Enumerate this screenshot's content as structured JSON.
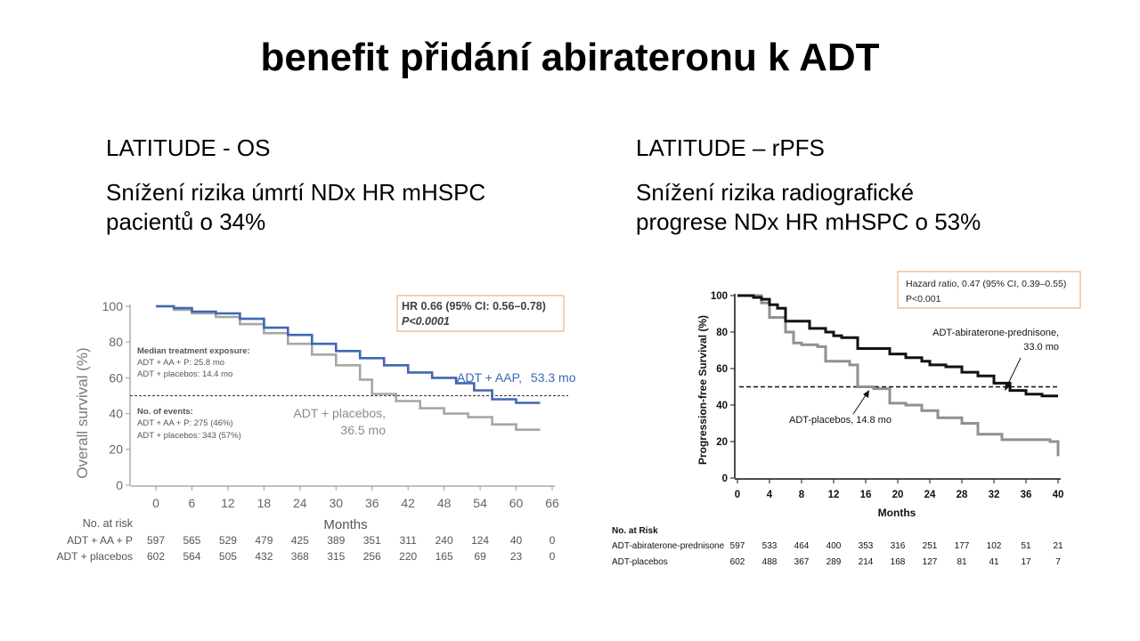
{
  "slide": {
    "title": "benefit přidání abirateronu k ADT",
    "left_heading": "LATITUDE - OS",
    "left_text_line1": "Snížení rizika úmrtí NDx HR mHSPC",
    "left_text_line2": "pacientů o 34%",
    "right_heading": "LATITUDE – rPFS",
    "right_text_line1": "Snížení rizika radiografické",
    "right_text_line2": "progrese NDx HR mHSPC o 53%"
  },
  "chart_data": [
    {
      "type": "line",
      "ylabel": "Overall survival (%)",
      "xlabel": "Months",
      "xlim": [
        0,
        66
      ],
      "ylim": [
        0,
        100
      ],
      "xticks": [
        0,
        6,
        12,
        18,
        24,
        30,
        36,
        42,
        48,
        54,
        60,
        66
      ],
      "yticks": [
        0,
        20,
        40,
        60,
        80,
        100
      ],
      "reference_line_y": 50,
      "hr_box_line1": "HR 0.66 (95% CI: 0.56–0.78)",
      "hr_box_line2": "P<0.0001",
      "median_exposure": {
        "heading": "Median treatment exposure:",
        "line1": "ADT + AA + P: 25.8 mo",
        "line2": "ADT + placebos: 14.4 mo"
      },
      "events": {
        "heading": "No. of events:",
        "line1": "ADT + AA + P: 275 (46%)",
        "line2": "ADT + placebos: 343 (57%)"
      },
      "series": [
        {
          "label_text": "ADT + AAP,",
          "median_text": "53.3 mo",
          "color": "#3f66b5",
          "points": [
            [
              0,
              100
            ],
            [
              3,
              99
            ],
            [
              6,
              97
            ],
            [
              10,
              96
            ],
            [
              14,
              93
            ],
            [
              18,
              88
            ],
            [
              22,
              84
            ],
            [
              26,
              79
            ],
            [
              30,
              75
            ],
            [
              34,
              71
            ],
            [
              38,
              67
            ],
            [
              42,
              63
            ],
            [
              46,
              60
            ],
            [
              50,
              57
            ],
            [
              53,
              53
            ],
            [
              56,
              48
            ],
            [
              60,
              46
            ],
            [
              64,
              46
            ]
          ]
        },
        {
          "label_text_line1": "ADT + placebos,",
          "label_text_line2": "36.5 mo",
          "color": "#a6a6a6",
          "points": [
            [
              0,
              100
            ],
            [
              3,
              98
            ],
            [
              6,
              96
            ],
            [
              10,
              94
            ],
            [
              14,
              90
            ],
            [
              18,
              85
            ],
            [
              22,
              79
            ],
            [
              26,
              73
            ],
            [
              30,
              67
            ],
            [
              34,
              59
            ],
            [
              36,
              51
            ],
            [
              40,
              47
            ],
            [
              44,
              43
            ],
            [
              48,
              40
            ],
            [
              52,
              38
            ],
            [
              56,
              34
            ],
            [
              60,
              31
            ],
            [
              64,
              31
            ]
          ]
        }
      ],
      "risk_table": {
        "header": "No. at risk",
        "rows": [
          {
            "label": "ADT + AA + P",
            "values": [
              "597",
              "565",
              "529",
              "479",
              "425",
              "389",
              "351",
              "311",
              "240",
              "124",
              "40",
              "0"
            ]
          },
          {
            "label": "ADT + placebos",
            "values": [
              "602",
              "564",
              "505",
              "432",
              "368",
              "315",
              "256",
              "220",
              "165",
              "69",
              "23",
              "0"
            ]
          }
        ]
      }
    },
    {
      "type": "line",
      "ylabel": "Progression-free Survival (%)",
      "xlabel": "Months",
      "xlim": [
        0,
        40
      ],
      "ylim": [
        0,
        100
      ],
      "xticks": [
        0,
        4,
        8,
        12,
        16,
        20,
        24,
        28,
        32,
        36,
        40
      ],
      "yticks": [
        0,
        20,
        40,
        60,
        80,
        100
      ],
      "reference_line_y": 50,
      "hr_box_line1": "Hazard ratio, 0.47 (95% CI, 0.39–0.55)",
      "hr_box_line2": "P<0.001",
      "series": [
        {
          "label_line1": "ADT-abiraterone-prednisone,",
          "label_line2": "33.0 mo",
          "color": "#111111",
          "points": [
            [
              0,
              100
            ],
            [
              2,
              99
            ],
            [
              3,
              98
            ],
            [
              4,
              95
            ],
            [
              5,
              93
            ],
            [
              6,
              86
            ],
            [
              8,
              86
            ],
            [
              9,
              82
            ],
            [
              11,
              80
            ],
            [
              12,
              78
            ],
            [
              13,
              77
            ],
            [
              15,
              71
            ],
            [
              17,
              71
            ],
            [
              19,
              68
            ],
            [
              21,
              66
            ],
            [
              23,
              64
            ],
            [
              24,
              62
            ],
            [
              26,
              61
            ],
            [
              28,
              58
            ],
            [
              30,
              56
            ],
            [
              32,
              52
            ],
            [
              34,
              48
            ],
            [
              36,
              46
            ],
            [
              38,
              45
            ],
            [
              40,
              45
            ]
          ]
        },
        {
          "label_line1": "ADT-placebos, 14.8 mo",
          "color": "#909090",
          "points": [
            [
              0,
              100
            ],
            [
              3,
              96
            ],
            [
              4,
              88
            ],
            [
              6,
              80
            ],
            [
              7,
              74
            ],
            [
              8,
              73
            ],
            [
              10,
              72
            ],
            [
              11,
              64
            ],
            [
              14,
              62
            ],
            [
              15,
              50
            ],
            [
              17,
              49
            ],
            [
              19,
              41
            ],
            [
              21,
              40
            ],
            [
              23,
              37
            ],
            [
              25,
              33
            ],
            [
              28,
              30
            ],
            [
              30,
              24
            ],
            [
              33,
              21
            ],
            [
              36,
              21
            ],
            [
              39,
              20
            ],
            [
              40,
              12
            ]
          ]
        }
      ],
      "risk_table": {
        "header": "No. at Risk",
        "rows": [
          {
            "label": "ADT-abiraterone-prednisone",
            "values": [
              "597",
              "533",
              "464",
              "400",
              "353",
              "316",
              "251",
              "177",
              "102",
              "51",
              "21"
            ]
          },
          {
            "label": "ADT-placebos",
            "values": [
              "602",
              "488",
              "367",
              "289",
              "214",
              "168",
              "127",
              "81",
              "41",
              "17",
              "7"
            ]
          }
        ]
      }
    }
  ]
}
